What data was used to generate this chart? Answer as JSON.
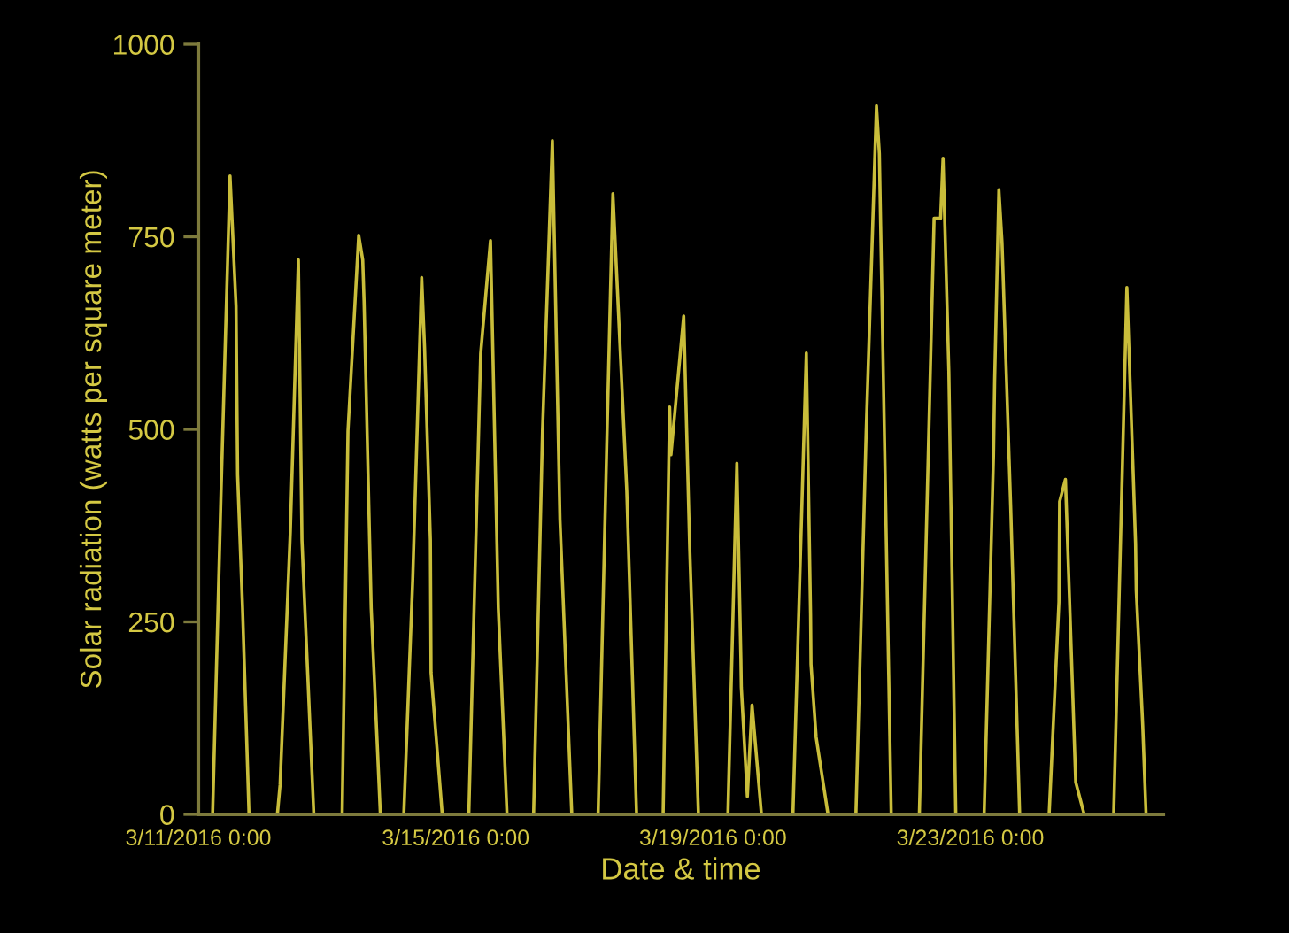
{
  "chart_data": {
    "type": "line",
    "xlabel": "Date & time",
    "ylabel": "Solar radiation (watts per square meter)",
    "xlim": [
      "2016-03-11T00:00",
      "2016-03-26T00:00"
    ],
    "xticks": [
      {
        "value": "2016-03-11T00:00",
        "label": "3/11/2016 0:00"
      },
      {
        "value": "2016-03-15T00:00",
        "label": "3/15/2016 0:00"
      },
      {
        "value": "2016-03-19T00:00",
        "label": "3/19/2016 0:00"
      },
      {
        "value": "2016-03-23T00:00",
        "label": "3/23/2016 0:00"
      }
    ],
    "ylim": [
      0,
      1000
    ],
    "yticks": [
      0,
      250,
      500,
      750,
      1000
    ],
    "marker": "none",
    "line_style": "solid",
    "series": [
      {
        "color": "#c9bd3a",
        "x": [
          "2016-03-11T05:20",
          "2016-03-11T08:30",
          "2016-03-11T11:50",
          "2016-03-11T14:05",
          "2016-03-11T14:40",
          "2016-03-11T16:30",
          "2016-03-11T18:55",
          "2016-03-12T05:30",
          "2016-03-12T06:30",
          "2016-03-12T10:20",
          "2016-03-12T13:20",
          "2016-03-12T14:40",
          "2016-03-12T15:10",
          "2016-03-12T19:05",
          "2016-03-13T05:40",
          "2016-03-13T07:50",
          "2016-03-13T11:50",
          "2016-03-13T13:20",
          "2016-03-13T13:50",
          "2016-03-13T16:30",
          "2016-03-13T19:55",
          "2016-03-14T04:40",
          "2016-03-14T08:00",
          "2016-03-14T11:20",
          "2016-03-14T12:25",
          "2016-03-14T14:35",
          "2016-03-14T14:50",
          "2016-03-14T19:00",
          "2016-03-15T04:55",
          "2016-03-15T09:20",
          "2016-03-15T13:00",
          "2016-03-15T15:55",
          "2016-03-15T19:10",
          "2016-03-16T05:05",
          "2016-03-16T08:25",
          "2016-03-16T12:05",
          "2016-03-16T14:55",
          "2016-03-16T19:20",
          "2016-03-17T05:10",
          "2016-03-17T08:30",
          "2016-03-17T10:40",
          "2016-03-17T15:50",
          "2016-03-17T19:30",
          "2016-03-18T05:25",
          "2016-03-18T07:50",
          "2016-03-18T08:20",
          "2016-03-18T13:05",
          "2016-03-18T15:20",
          "2016-03-18T18:35",
          "2016-03-19T05:35",
          "2016-03-19T08:55",
          "2016-03-19T10:25",
          "2016-03-19T10:35",
          "2016-03-19T12:50",
          "2016-03-19T14:35",
          "2016-03-19T18:05",
          "2016-03-20T05:50",
          "2016-03-20T10:50",
          "2016-03-20T12:25",
          "2016-03-20T12:35",
          "2016-03-20T14:30",
          "2016-03-20T18:55",
          "2016-03-21T05:20",
          "2016-03-21T09:10",
          "2016-03-21T13:00",
          "2016-03-21T14:05",
          "2016-03-21T18:30",
          "2016-03-22T05:00",
          "2016-03-22T10:30",
          "2016-03-22T12:55",
          "2016-03-22T13:50",
          "2016-03-22T16:00",
          "2016-03-22T18:35",
          "2016-03-23T05:10",
          "2016-03-23T08:40",
          "2016-03-23T09:05",
          "2016-03-23T10:40",
          "2016-03-23T11:50",
          "2016-03-23T15:05",
          "2016-03-23T18:25",
          "2016-03-24T05:25",
          "2016-03-24T09:05",
          "2016-03-24T09:20",
          "2016-03-24T11:30",
          "2016-03-24T15:20",
          "2016-03-24T18:30",
          "2016-03-25T05:30",
          "2016-03-25T10:25",
          "2016-03-25T13:40",
          "2016-03-25T13:55",
          "2016-03-25T16:05",
          "2016-03-25T16:20",
          "2016-03-25T17:35"
        ],
        "values": [
          0,
          420,
          829,
          660,
          441,
          268,
          0,
          0,
          38,
          368,
          720,
          356,
          314,
          0,
          0,
          498,
          752,
          720,
          667,
          268,
          0,
          0,
          306,
          697,
          605,
          356,
          184,
          0,
          0,
          598,
          745,
          268,
          0,
          0,
          498,
          875,
          383,
          0,
          0,
          498,
          806,
          421,
          0,
          0,
          529,
          467,
          647,
          345,
          0,
          0,
          456,
          203,
          165,
          23,
          142,
          0,
          0,
          599,
          260,
          195,
          100,
          0,
          0,
          498,
          920,
          858,
          0,
          0,
          774,
          774,
          852,
          575,
          0,
          0,
          467,
          563,
          811,
          743,
          398,
          0,
          0,
          276,
          406,
          435,
          42,
          0,
          0,
          684,
          352,
          291,
          134,
          115,
          0
        ]
      }
    ]
  }
}
